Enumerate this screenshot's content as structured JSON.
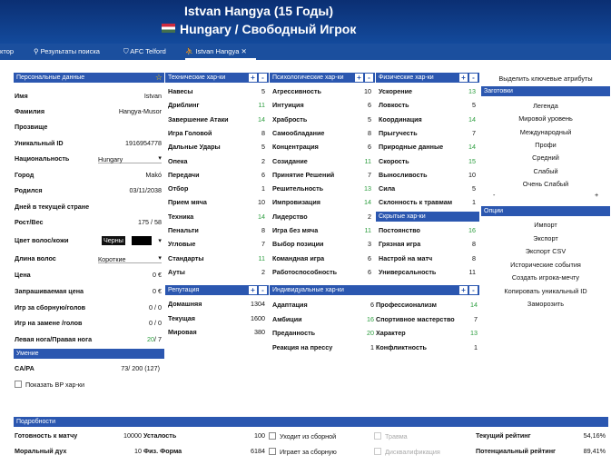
{
  "window": {
    "title": "Istvan Hangya (15 Годы)",
    "subtitle": "Hungary / Свободный Игрок"
  },
  "tabs": [
    "ктор",
    "Результаты поиска",
    "AFC Telford",
    "Istvan Hangya"
  ],
  "personal": {
    "header": "Персональные данные",
    "rows": [
      {
        "label": "Имя",
        "value": "Istvan"
      },
      {
        "label": "Фамилия",
        "value": "Hangya-Musor"
      },
      {
        "label": "Прозвище",
        "value": ""
      },
      {
        "label": "Уникальный ID",
        "value": "1916954778"
      },
      {
        "label": "Национальность",
        "value": "Hungary"
      },
      {
        "label": "Город",
        "value": "Makó"
      },
      {
        "label": "Родился",
        "value": "03/11/2038"
      },
      {
        "label": "Дней в текущей стране",
        "value": ""
      },
      {
        "label": "Рост/Вес",
        "value": "175 / 58"
      },
      {
        "label": "Цвет волос/кожи",
        "value": "Черны"
      },
      {
        "label": "Длина волос",
        "value": "Короткие"
      },
      {
        "label": "Цена",
        "value": "0 €"
      },
      {
        "label": "Запрашиваемая цена",
        "value": "0 €"
      },
      {
        "label": "Игр за сборную/голов",
        "value": "0 / 0"
      },
      {
        "label": "Игр на замене /голов",
        "value": "0 / 0"
      },
      {
        "label": "Левая нога/Правая нога",
        "value_left": "20",
        "value_right": "/ 7"
      }
    ]
  },
  "ability": {
    "header": "Умение",
    "label": "CA/PA",
    "value": "73/ 200 (127)",
    "show_bp": "Показать BP хар-ки"
  },
  "technical": {
    "header": "Технические хар-ки",
    "items": [
      {
        "name": "Навесы",
        "v": "5",
        "c": "#111"
      },
      {
        "name": "Дриблинг",
        "v": "11",
        "c": "#2a9c3c"
      },
      {
        "name": "Завершение Атаки",
        "v": "14",
        "c": "#2a9c3c"
      },
      {
        "name": "Игра Головой",
        "v": "8",
        "c": "#111"
      },
      {
        "name": "Дальные Удары",
        "v": "5",
        "c": "#111"
      },
      {
        "name": "Опека",
        "v": "2",
        "c": "#111"
      },
      {
        "name": "Передачи",
        "v": "6",
        "c": "#111"
      },
      {
        "name": "Отбор",
        "v": "1",
        "c": "#111"
      },
      {
        "name": "Прием мяча",
        "v": "10",
        "c": "#111"
      },
      {
        "name": "Техника",
        "v": "14",
        "c": "#2a9c3c"
      },
      {
        "name": "Пенальти",
        "v": "8",
        "c": "#111"
      },
      {
        "name": "Угловые",
        "v": "7",
        "c": "#111"
      },
      {
        "name": "Стандарты",
        "v": "11",
        "c": "#2a9c3c"
      },
      {
        "name": "Ауты",
        "v": "2",
        "c": "#111"
      }
    ]
  },
  "mental": {
    "header": "Психологические хар-ки",
    "items": [
      {
        "name": "Агрессивность",
        "v": "10",
        "c": "#111"
      },
      {
        "name": "Интуиция",
        "v": "6",
        "c": "#111"
      },
      {
        "name": "Храбрость",
        "v": "5",
        "c": "#111"
      },
      {
        "name": "Самообладание",
        "v": "8",
        "c": "#111"
      },
      {
        "name": "Концентрация",
        "v": "6",
        "c": "#111"
      },
      {
        "name": "Созидание",
        "v": "11",
        "c": "#2a9c3c"
      },
      {
        "name": "Принятие Решений",
        "v": "7",
        "c": "#111"
      },
      {
        "name": "Решительность",
        "v": "13",
        "c": "#2a9c3c"
      },
      {
        "name": "Импровизация",
        "v": "14",
        "c": "#2a9c3c"
      },
      {
        "name": "Лидерство",
        "v": "2",
        "c": "#111"
      },
      {
        "name": "Игра без мяча",
        "v": "11",
        "c": "#2a9c3c"
      },
      {
        "name": "Выбор позиции",
        "v": "3",
        "c": "#111"
      },
      {
        "name": "Командная игра",
        "v": "6",
        "c": "#111"
      },
      {
        "name": "Работоспособность",
        "v": "6",
        "c": "#111"
      }
    ]
  },
  "physical": {
    "header": "Физические хар-ки",
    "items": [
      {
        "name": "Ускорение",
        "v": "13",
        "c": "#2a9c3c"
      },
      {
        "name": "Ловкость",
        "v": "5",
        "c": "#111"
      },
      {
        "name": "Координация",
        "v": "14",
        "c": "#2a9c3c"
      },
      {
        "name": "Прыгучесть",
        "v": "7",
        "c": "#111"
      },
      {
        "name": "Природные данные",
        "v": "14",
        "c": "#2a9c3c"
      },
      {
        "name": "Скорость",
        "v": "15",
        "c": "#2a9c3c"
      },
      {
        "name": "Выносливость",
        "v": "10",
        "c": "#111"
      },
      {
        "name": "Сила",
        "v": "5",
        "c": "#111"
      },
      {
        "name": "Склонность к травмам",
        "v": "1",
        "c": "#111"
      }
    ]
  },
  "hidden": {
    "header": "Скрытые хар-ки",
    "items": [
      {
        "name": "Постоянство",
        "v": "16",
        "c": "#2a9c3c"
      },
      {
        "name": "Грязная игра",
        "v": "8",
        "c": "#111"
      },
      {
        "name": "Настрой на матч",
        "v": "8",
        "c": "#111"
      },
      {
        "name": "Универсальность",
        "v": "11",
        "c": "#111"
      }
    ]
  },
  "reputation": {
    "header": "Репутация",
    "items": [
      {
        "name": "Домашняя",
        "v": "1304"
      },
      {
        "name": "Текущая",
        "v": "1600"
      },
      {
        "name": "Мировая",
        "v": "380"
      }
    ]
  },
  "individual": {
    "header": "Индивидуальные хар-ки",
    "items": [
      {
        "name": "Адаптация",
        "v": "6",
        "c": "#111"
      },
      {
        "name": "Амбиции",
        "v": "16",
        "c": "#2a9c3c"
      },
      {
        "name": "Преданность",
        "v": "20",
        "c": "#2a9c3c"
      },
      {
        "name": "Реакция на прессу",
        "v": "1",
        "c": "#111"
      },
      {
        "name": "Профессионализм",
        "v": "14",
        "c": "#2a9c3c"
      },
      {
        "name": "Спортивное мастерство",
        "v": "7",
        "c": "#111"
      },
      {
        "name": "Характер",
        "v": "13",
        "c": "#2a9c3c"
      },
      {
        "name": "Конфликтность",
        "v": "1",
        "c": "#111"
      }
    ]
  },
  "right": {
    "highlight": "Выделить ключевые атрибуты",
    "presets_header": "Заготовки",
    "presets": [
      "Легенда",
      "Мировой уровень",
      "Международный",
      "Профи",
      "Средний",
      "Слабый",
      "Очень Слабый"
    ],
    "minus": "-",
    "plus": "+",
    "options_header": "Опции",
    "options": [
      "Импорт",
      "Экспорт",
      "Экспорт CSV",
      "Исторические события",
      "Создать игрока-мечту",
      "Копировать уникальный ID",
      "Заморозить"
    ]
  },
  "details": {
    "header": "Подробности",
    "fitness_label": "Готовность к матчу",
    "fitness": "10000",
    "fatigue_label": "Усталость",
    "fatigue": "100",
    "morale_label": "Моральный дух",
    "morale": "10",
    "form_label": "Физ. Форма",
    "form": "6184",
    "cb1": "Уходит из сборной",
    "cb2": "Играет за сборную",
    "cb3": "Травма",
    "cb4": "Дисквалификация",
    "cur_label": "Текущий рейтинг",
    "cur": "54,16%",
    "pot_label": "Потенциальный рейтинг",
    "pot": "89,41%"
  }
}
